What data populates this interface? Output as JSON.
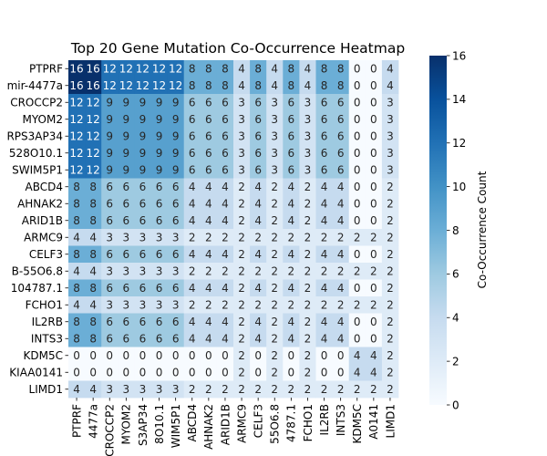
{
  "chart_data": {
    "type": "heatmap",
    "title": "Top 20 Gene Mutation Co-Occurrence Heatmap",
    "row_labels": [
      "PTPRF",
      "mir-4477a",
      "CROCCP2",
      "MYOM2",
      "RPS3AP34",
      "528O10.1",
      "SWIM5P1",
      "ABCD4",
      "AHNAK2",
      "ARID1B",
      "ARMC9",
      "CELF3",
      "B-55O6.8",
      "104787.1",
      "FCHO1",
      "IL2RB",
      "INTS3",
      "KDM5C",
      "KIAA0141",
      "LIMD1"
    ],
    "col_labels": [
      "PTPRF",
      "4477a",
      "CROCCP2",
      "MYOM2",
      "S3AP34",
      "8O10.1",
      "WIM5P1",
      "ABCD4",
      "AHNAK2",
      "ARID1B",
      "ARMC9",
      "CELF3",
      "55O6.8",
      "4787.1",
      "FCHO1",
      "IL2RB",
      "INTS3",
      "KDM5C",
      "A0141",
      "LIMD1"
    ],
    "values": [
      [
        16,
        16,
        12,
        12,
        12,
        12,
        12,
        8,
        8,
        8,
        4,
        8,
        4,
        8,
        4,
        8,
        8,
        0,
        0,
        4
      ],
      [
        16,
        16,
        12,
        12,
        12,
        12,
        12,
        8,
        8,
        8,
        4,
        8,
        4,
        8,
        4,
        8,
        8,
        0,
        0,
        4
      ],
      [
        12,
        12,
        9,
        9,
        9,
        9,
        9,
        6,
        6,
        6,
        3,
        6,
        3,
        6,
        3,
        6,
        6,
        0,
        0,
        3
      ],
      [
        12,
        12,
        9,
        9,
        9,
        9,
        9,
        6,
        6,
        6,
        3,
        6,
        3,
        6,
        3,
        6,
        6,
        0,
        0,
        3
      ],
      [
        12,
        12,
        9,
        9,
        9,
        9,
        9,
        6,
        6,
        6,
        3,
        6,
        3,
        6,
        3,
        6,
        6,
        0,
        0,
        3
      ],
      [
        12,
        12,
        9,
        9,
        9,
        9,
        9,
        6,
        6,
        6,
        3,
        6,
        3,
        6,
        3,
        6,
        6,
        0,
        0,
        3
      ],
      [
        12,
        12,
        9,
        9,
        9,
        9,
        9,
        6,
        6,
        6,
        3,
        6,
        3,
        6,
        3,
        6,
        6,
        0,
        0,
        3
      ],
      [
        8,
        8,
        6,
        6,
        6,
        6,
        6,
        4,
        4,
        4,
        2,
        4,
        2,
        4,
        2,
        4,
        4,
        0,
        0,
        2
      ],
      [
        8,
        8,
        6,
        6,
        6,
        6,
        6,
        4,
        4,
        4,
        2,
        4,
        2,
        4,
        2,
        4,
        4,
        0,
        0,
        2
      ],
      [
        8,
        8,
        6,
        6,
        6,
        6,
        6,
        4,
        4,
        4,
        2,
        4,
        2,
        4,
        2,
        4,
        4,
        0,
        0,
        2
      ],
      [
        4,
        4,
        3,
        3,
        3,
        3,
        3,
        2,
        2,
        2,
        2,
        2,
        2,
        2,
        2,
        2,
        2,
        2,
        2,
        2
      ],
      [
        8,
        8,
        6,
        6,
        6,
        6,
        6,
        4,
        4,
        4,
        2,
        4,
        2,
        4,
        2,
        4,
        4,
        0,
        0,
        2
      ],
      [
        4,
        4,
        3,
        3,
        3,
        3,
        3,
        2,
        2,
        2,
        2,
        2,
        2,
        2,
        2,
        2,
        2,
        2,
        2,
        2
      ],
      [
        8,
        8,
        6,
        6,
        6,
        6,
        6,
        4,
        4,
        4,
        2,
        4,
        2,
        4,
        2,
        4,
        4,
        0,
        0,
        2
      ],
      [
        4,
        4,
        3,
        3,
        3,
        3,
        3,
        2,
        2,
        2,
        2,
        2,
        2,
        2,
        2,
        2,
        2,
        2,
        2,
        2
      ],
      [
        8,
        8,
        6,
        6,
        6,
        6,
        6,
        4,
        4,
        4,
        2,
        4,
        2,
        4,
        2,
        4,
        4,
        0,
        0,
        2
      ],
      [
        8,
        8,
        6,
        6,
        6,
        6,
        6,
        4,
        4,
        4,
        2,
        4,
        2,
        4,
        2,
        4,
        4,
        0,
        0,
        2
      ],
      [
        0,
        0,
        0,
        0,
        0,
        0,
        0,
        0,
        0,
        0,
        2,
        0,
        2,
        0,
        2,
        0,
        0,
        4,
        4,
        2
      ],
      [
        0,
        0,
        0,
        0,
        0,
        0,
        0,
        0,
        0,
        0,
        2,
        0,
        2,
        0,
        2,
        0,
        0,
        4,
        4,
        2
      ],
      [
        4,
        4,
        3,
        3,
        3,
        3,
        3,
        2,
        2,
        2,
        2,
        2,
        2,
        2,
        2,
        2,
        2,
        2,
        2,
        2
      ]
    ],
    "colorbar": {
      "label": "Co-Occurrence Count",
      "min": 0,
      "max": 16,
      "ticks": [
        0,
        2,
        4,
        6,
        8,
        10,
        12,
        14,
        16
      ],
      "colormap": "Blues",
      "colors": [
        "#f7fbff",
        "#deebf7",
        "#c6dbef",
        "#9ecae1",
        "#6baed6",
        "#4292c6",
        "#2171b5",
        "#08519c",
        "#08306b"
      ]
    },
    "annotated": true
  }
}
